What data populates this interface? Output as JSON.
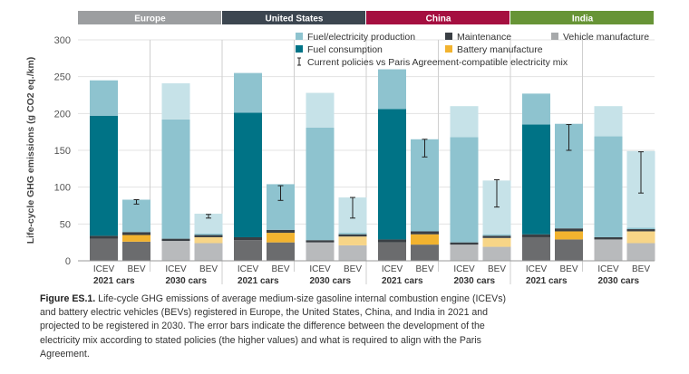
{
  "chart_data": {
    "type": "bar",
    "stacked": true,
    "title": "",
    "ylabel": "Life-cycle GHG emissions (g CO2 eq./km)",
    "ylim": [
      0,
      300
    ],
    "yticks": [
      0,
      50,
      100,
      150,
      200,
      250,
      300
    ],
    "regions": [
      {
        "name": "Europe",
        "color": "#9c9ea0"
      },
      {
        "name": "United States",
        "color": "#3c4650"
      },
      {
        "name": "China",
        "color": "#a50f40"
      },
      {
        "name": "India",
        "color": "#679436"
      }
    ],
    "year_groups": [
      "2021 cars",
      "2030 cars"
    ],
    "vehicle_types": [
      "ICEV",
      "BEV"
    ],
    "components": [
      {
        "key": "vehicle",
        "name": "Vehicle manufacture"
      },
      {
        "key": "battery",
        "name": "Battery manufacture"
      },
      {
        "key": "maintenance",
        "name": "Maintenance"
      },
      {
        "key": "fuel_consumption",
        "name": "Fuel consumption"
      },
      {
        "key": "fuel_production",
        "name": "Fuel/electricity production"
      }
    ],
    "bars": [
      {
        "region": "Europe",
        "group": "2021 cars",
        "type": "ICEV",
        "vehicle": 30,
        "battery": 0,
        "maintenance": 4,
        "fuel_consumption": 163,
        "fuel_production": 48,
        "error": null
      },
      {
        "region": "Europe",
        "group": "2021 cars",
        "type": "BEV",
        "vehicle": 26,
        "battery": 9,
        "maintenance": 4,
        "fuel_consumption": 0,
        "fuel_production": 44,
        "error": [
          77,
          83
        ]
      },
      {
        "region": "Europe",
        "group": "2030 cars",
        "type": "ICEV",
        "vehicle": 27,
        "battery": 0,
        "maintenance": 3,
        "fuel_consumption": 0,
        "fuel_production": 162,
        "fuel_production_future": 49,
        "error": null
      },
      {
        "region": "Europe",
        "group": "2030 cars",
        "type": "BEV",
        "vehicle": 24,
        "battery": 8,
        "maintenance": 3,
        "fuel_consumption": 0,
        "fuel_production": 2,
        "fuel_production_future": 27,
        "error": [
          58,
          63
        ]
      },
      {
        "region": "United States",
        "group": "2021 cars",
        "type": "ICEV",
        "vehicle": 28,
        "battery": 0,
        "maintenance": 4,
        "fuel_consumption": 169,
        "fuel_production": 54,
        "error": null
      },
      {
        "region": "United States",
        "group": "2021 cars",
        "type": "BEV",
        "vehicle": 25,
        "battery": 13,
        "maintenance": 4,
        "fuel_consumption": 0,
        "fuel_production": 62,
        "error": [
          82,
          102
        ]
      },
      {
        "region": "United States",
        "group": "2030 cars",
        "type": "ICEV",
        "vehicle": 25,
        "battery": 0,
        "maintenance": 3,
        "fuel_consumption": 0,
        "fuel_production": 153,
        "fuel_production_future": 47,
        "error": null
      },
      {
        "region": "United States",
        "group": "2030 cars",
        "type": "BEV",
        "vehicle": 21,
        "battery": 12,
        "maintenance": 3,
        "fuel_consumption": 0,
        "fuel_production": 2,
        "fuel_production_future": 48,
        "error": [
          58,
          86
        ]
      },
      {
        "region": "China",
        "group": "2021 cars",
        "type": "ICEV",
        "vehicle": 25,
        "battery": 0,
        "maintenance": 4,
        "fuel_consumption": 177,
        "fuel_production": 54,
        "error": null
      },
      {
        "region": "China",
        "group": "2021 cars",
        "type": "BEV",
        "vehicle": 22,
        "battery": 14,
        "maintenance": 4,
        "fuel_consumption": 0,
        "fuel_production": 125,
        "error": [
          141,
          165
        ]
      },
      {
        "region": "China",
        "group": "2030 cars",
        "type": "ICEV",
        "vehicle": 22,
        "battery": 0,
        "maintenance": 3,
        "fuel_consumption": 0,
        "fuel_production": 143,
        "fuel_production_future": 42,
        "error": null
      },
      {
        "region": "China",
        "group": "2030 cars",
        "type": "BEV",
        "vehicle": 19,
        "battery": 12,
        "maintenance": 3,
        "fuel_consumption": 0,
        "fuel_production": 2,
        "fuel_production_future": 73,
        "error": [
          73,
          110
        ]
      },
      {
        "region": "India",
        "group": "2021 cars",
        "type": "ICEV",
        "vehicle": 32,
        "battery": 0,
        "maintenance": 4,
        "fuel_consumption": 149,
        "fuel_production": 42,
        "error": null
      },
      {
        "region": "India",
        "group": "2021 cars",
        "type": "BEV",
        "vehicle": 29,
        "battery": 11,
        "maintenance": 4,
        "fuel_consumption": 0,
        "fuel_production": 142,
        "error": [
          150,
          185
        ]
      },
      {
        "region": "India",
        "group": "2030 cars",
        "type": "ICEV",
        "vehicle": 29,
        "battery": 0,
        "maintenance": 3,
        "fuel_consumption": 0,
        "fuel_production": 137,
        "fuel_production_future": 41,
        "error": null
      },
      {
        "region": "India",
        "group": "2030 cars",
        "type": "BEV",
        "vehicle": 24,
        "battery": 16,
        "maintenance": 3,
        "fuel_consumption": 0,
        "fuel_production": 2,
        "fuel_production_future": 104,
        "error": [
          92,
          148
        ]
      }
    ],
    "legend": {
      "position": "top-right",
      "entries": [
        {
          "label": "Fuel/electricity production",
          "kind": "swatch",
          "color": "#8ec3cf"
        },
        {
          "label": "Maintenance",
          "kind": "swatch",
          "color": "#3a3f44"
        },
        {
          "label": "Vehicle manufacture",
          "kind": "swatch",
          "color": "#a7a9ab"
        },
        {
          "label": "Fuel consumption",
          "kind": "swatch",
          "color": "#007386"
        },
        {
          "label": "Battery manufacture",
          "kind": "swatch",
          "color": "#f2b32f"
        },
        {
          "label": "Current policies vs Paris Agreement-compatible electricity mix",
          "kind": "errorbar",
          "color": "#222222"
        }
      ]
    },
    "colors": {
      "fuel_production": "#8ec3cf",
      "fuel_production_future": "#c6e2e8",
      "fuel_consumption": "#007386",
      "maintenance": "#3a3f44",
      "battery": "#f2b32f",
      "battery_future": "#f7d587",
      "vehicle": "#6b6c6e",
      "vehicle_future": "#b8babc",
      "grid": "#e3e3e3",
      "axis": "#9a9a9a",
      "separator": "#cfcfcf"
    }
  },
  "caption": {
    "label": "Figure ES.1.",
    "text": " Life-cycle GHG emissions of average medium-size gasoline internal combustion engine (ICEVs) and battery electric vehicles (BEVs) registered in Europe, the United States, China, and India in 2021 and projected to be registered in 2030. The error bars indicate the difference between the development of the electricity mix according to stated policies (the higher values) and what is required to align with the Paris Agreement."
  }
}
